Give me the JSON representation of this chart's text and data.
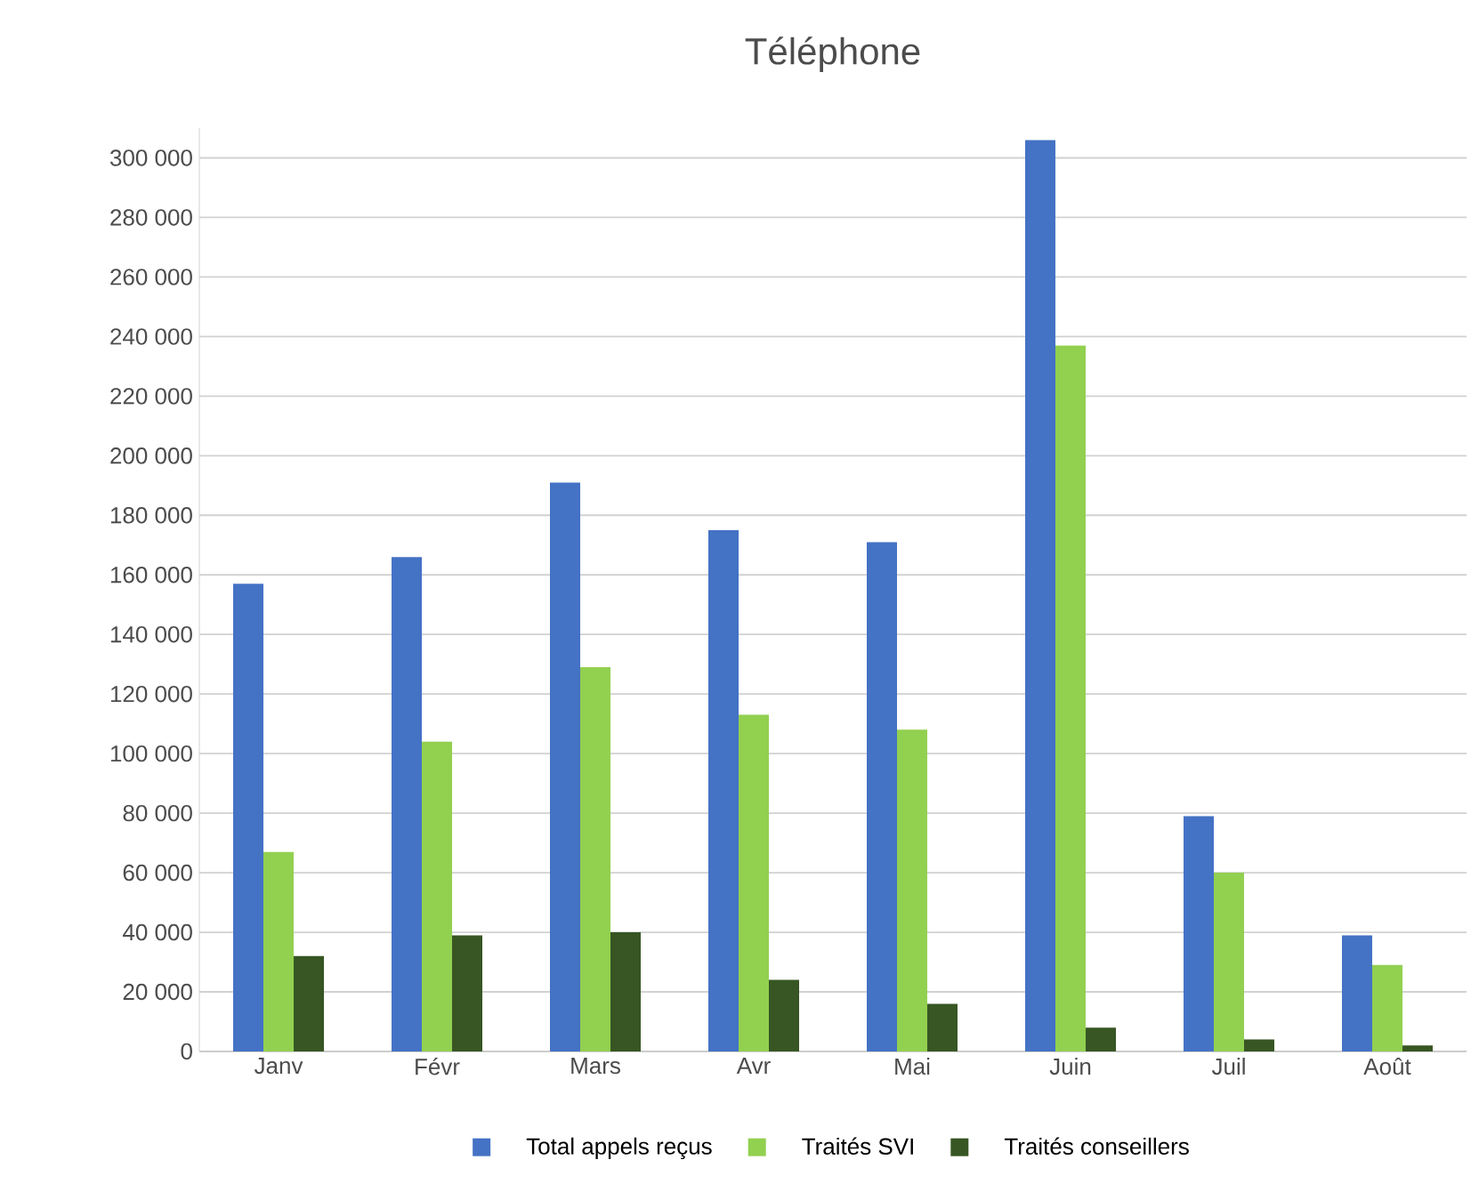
{
  "chart_data": {
    "type": "bar",
    "title": "Téléphone",
    "categories": [
      "Janv",
      "Févr",
      "Mars",
      "Avr",
      "Mai",
      "Juin",
      "Juil",
      "Août"
    ],
    "series": [
      {
        "name": "Total appels reçus",
        "color": "#4472c4",
        "values": [
          157000,
          166000,
          191000,
          175000,
          171000,
          306000,
          79000,
          39000
        ]
      },
      {
        "name": "Traités SVI",
        "color": "#92d050",
        "values": [
          67000,
          104000,
          129000,
          113000,
          108000,
          237000,
          60000,
          29000
        ]
      },
      {
        "name": "Traités conseillers",
        "color": "#375623",
        "values": [
          32000,
          39000,
          40000,
          24000,
          16000,
          8000,
          4000,
          2000
        ]
      }
    ],
    "ylim": [
      0,
      310000
    ],
    "yticks": [
      {
        "value": 0,
        "label": "0"
      },
      {
        "value": 20000,
        "label": "20 000"
      },
      {
        "value": 40000,
        "label": "40 000"
      },
      {
        "value": 60000,
        "label": "60 000"
      },
      {
        "value": 80000,
        "label": "80 000"
      },
      {
        "value": 100000,
        "label": "100 000"
      },
      {
        "value": 120000,
        "label": "120 000"
      },
      {
        "value": 140000,
        "label": "140 000"
      },
      {
        "value": 160000,
        "label": "160 000"
      },
      {
        "value": 180000,
        "label": "180 000"
      },
      {
        "value": 200000,
        "label": "200 000"
      },
      {
        "value": 220000,
        "label": "220 000"
      },
      {
        "value": 240000,
        "label": "240 000"
      },
      {
        "value": 260000,
        "label": "260 000"
      },
      {
        "value": 280000,
        "label": "280 000"
      },
      {
        "value": 300000,
        "label": "300 000"
      }
    ],
    "grid": "y",
    "legend": "bottom"
  }
}
